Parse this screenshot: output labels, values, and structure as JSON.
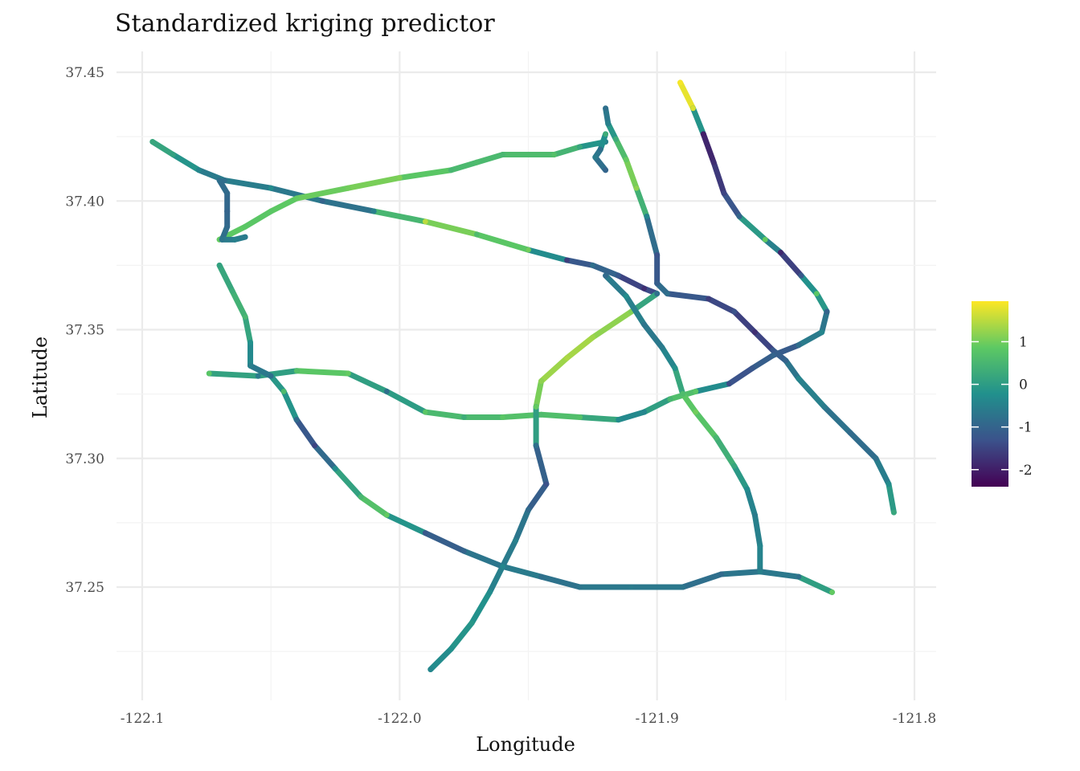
{
  "chart_data": {
    "type": "line",
    "title": "Standardized kriging predictor",
    "xlabel": "Longitude",
    "ylabel": "Latitude",
    "xlim": [
      -122.1,
      -121.8
    ],
    "ylim": [
      37.21,
      37.455
    ],
    "x_ticks": [
      -122.1,
      -122.0,
      -121.9,
      -121.8
    ],
    "x_tick_labels": [
      "-122.1",
      "-122.0",
      "-121.9",
      "-121.8"
    ],
    "y_ticks": [
      37.25,
      37.3,
      37.35,
      37.4,
      37.45
    ],
    "y_tick_labels": [
      "37.25",
      "37.30",
      "37.35",
      "37.40",
      "37.45"
    ],
    "grid": true,
    "legend": {
      "position": "right",
      "type": "colorbar",
      "range": [
        -2.4,
        1.95
      ],
      "breaks": [
        1,
        0,
        -1,
        -2
      ],
      "break_labels": [
        "1",
        "0",
        "-1",
        "-2"
      ],
      "colors": [
        "#440154",
        "#3b528b",
        "#21908d",
        "#5dc963",
        "#fde725"
      ]
    },
    "series": [
      {
        "points": [
          [
            -122.096,
            37.423,
            0.2
          ],
          [
            -122.088,
            37.418,
            0.1
          ],
          [
            -122.078,
            37.412,
            -0.4
          ],
          [
            -122.068,
            37.408,
            -0.8
          ],
          [
            -122.05,
            37.405,
            -0.3
          ],
          [
            -122.03,
            37.4,
            -1.0
          ],
          [
            -122.01,
            37.396,
            -0.5
          ],
          [
            -121.99,
            37.392,
            1.5
          ],
          [
            -121.97,
            37.387,
            0.6
          ],
          [
            -121.95,
            37.381,
            1.0
          ],
          [
            -121.935,
            37.377,
            -1.6
          ],
          [
            -121.925,
            37.375,
            -0.8
          ],
          [
            -121.915,
            37.371,
            -1.2
          ],
          [
            -121.905,
            37.366,
            -1.8
          ],
          [
            -121.9,
            37.364,
            -1.0
          ]
        ]
      },
      {
        "points": [
          [
            -122.07,
            37.385,
            0.9
          ],
          [
            -122.06,
            37.39,
            0.8
          ],
          [
            -122.05,
            37.396,
            0.8
          ],
          [
            -122.04,
            37.401,
            0.9
          ],
          [
            -122.02,
            37.405,
            1.0
          ],
          [
            -122.0,
            37.409,
            1.1
          ],
          [
            -121.98,
            37.412,
            0.5
          ],
          [
            -121.97,
            37.415,
            0.6
          ],
          [
            -121.96,
            37.418,
            0.5
          ],
          [
            -121.94,
            37.418,
            0.7
          ],
          [
            -121.93,
            37.421,
            0.2
          ],
          [
            -121.92,
            37.423,
            -0.5
          ]
        ]
      },
      {
        "points": [
          [
            -122.07,
            37.408,
            -0.8
          ],
          [
            -122.067,
            37.403,
            -0.9
          ],
          [
            -122.067,
            37.396,
            -1.0
          ],
          [
            -122.067,
            37.39,
            -0.9
          ],
          [
            -122.069,
            37.385,
            -0.7
          ],
          [
            -122.064,
            37.385,
            -0.5
          ],
          [
            -122.06,
            37.386,
            -0.6
          ]
        ]
      },
      {
        "points": [
          [
            -121.92,
            37.436,
            -0.8
          ],
          [
            -121.919,
            37.43,
            -0.5
          ],
          [
            -121.916,
            37.424,
            0.3
          ],
          [
            -121.912,
            37.416,
            0.9
          ],
          [
            -121.908,
            37.405,
            1.2
          ],
          [
            -121.904,
            37.394,
            -0.4
          ],
          [
            -121.9,
            37.379,
            -1.3
          ],
          [
            -121.9,
            37.368,
            -1.1
          ],
          [
            -121.896,
            37.364,
            -0.6
          ]
        ]
      },
      {
        "points": [
          [
            -121.92,
            37.426,
            0.3
          ],
          [
            -121.922,
            37.42,
            -0.8
          ],
          [
            -121.924,
            37.417,
            -0.6
          ],
          [
            -121.92,
            37.412,
            -1.0
          ]
        ]
      },
      {
        "points": [
          [
            -121.891,
            37.446,
            1.9
          ],
          [
            -121.886,
            37.436,
            1.7
          ],
          [
            -121.882,
            37.426,
            -2.0
          ],
          [
            -121.878,
            37.415,
            -1.8
          ],
          [
            -121.874,
            37.403,
            -1.5
          ],
          [
            -121.868,
            37.394,
            -1.0
          ],
          [
            -121.858,
            37.385,
            0.9
          ],
          [
            -121.852,
            37.38,
            -1.9
          ],
          [
            -121.844,
            37.371,
            -1.2
          ],
          [
            -121.838,
            37.364,
            0.8
          ],
          [
            -121.834,
            37.357,
            -1.0
          ],
          [
            -121.836,
            37.349,
            -0.4
          ],
          [
            -121.845,
            37.344,
            -0.8
          ],
          [
            -121.855,
            37.34,
            -1.5
          ]
        ]
      },
      {
        "points": [
          [
            -121.896,
            37.364,
            -0.8
          ],
          [
            -121.88,
            37.362,
            -1.6
          ],
          [
            -121.87,
            37.357,
            -1.3
          ],
          [
            -121.862,
            37.349,
            -1.8
          ],
          [
            -121.855,
            37.342,
            -1.2
          ],
          [
            -121.85,
            37.338,
            -1.0
          ],
          [
            -121.845,
            37.331,
            -0.4
          ],
          [
            -121.835,
            37.32,
            -0.6
          ],
          [
            -121.825,
            37.31,
            -0.9
          ],
          [
            -121.815,
            37.3,
            -0.8
          ],
          [
            -121.81,
            37.29,
            -0.3
          ],
          [
            -121.808,
            37.279,
            0.2
          ]
        ]
      },
      {
        "points": [
          [
            -121.855,
            37.34,
            -1.0
          ],
          [
            -121.863,
            37.335,
            -1.2
          ],
          [
            -121.872,
            37.329,
            -1.4
          ],
          [
            -121.885,
            37.326,
            0.8
          ],
          [
            -121.895,
            37.323,
            0.5
          ],
          [
            -121.905,
            37.318,
            -0.4
          ],
          [
            -121.915,
            37.315,
            -0.3
          ],
          [
            -121.93,
            37.316,
            0.7
          ],
          [
            -121.945,
            37.317,
            0.6
          ],
          [
            -121.96,
            37.316,
            0.8
          ],
          [
            -121.975,
            37.316,
            0.3
          ],
          [
            -121.99,
            37.318,
            0.8
          ],
          [
            -122.005,
            37.326,
            -0.8
          ],
          [
            -122.02,
            37.333,
            0.9
          ],
          [
            -122.04,
            37.334,
            0.7
          ],
          [
            -122.055,
            37.332,
            -0.6
          ],
          [
            -122.074,
            37.333,
            0.8
          ]
        ]
      },
      {
        "points": [
          [
            -121.9,
            37.364,
            -0.8
          ],
          [
            -121.91,
            37.357,
            1.1
          ],
          [
            -121.925,
            37.347,
            1.3
          ],
          [
            -121.935,
            37.339,
            1.4
          ],
          [
            -121.945,
            37.33,
            1.2
          ],
          [
            -121.947,
            37.32,
            0.9
          ],
          [
            -121.947,
            37.305,
            -0.8
          ],
          [
            -121.943,
            37.29,
            -1.3
          ],
          [
            -121.95,
            37.28,
            -0.9
          ],
          [
            -121.955,
            37.268,
            -0.5
          ],
          [
            -121.96,
            37.258,
            -0.7
          ],
          [
            -121.965,
            37.248,
            -0.3
          ],
          [
            -121.972,
            37.236,
            -0.1
          ],
          [
            -121.98,
            37.226,
            -0.2
          ],
          [
            -121.988,
            37.218,
            -0.4
          ]
        ]
      },
      {
        "points": [
          [
            -121.92,
            37.371,
            -0.9
          ],
          [
            -121.912,
            37.363,
            -0.3
          ],
          [
            -121.905,
            37.352,
            -0.7
          ],
          [
            -121.898,
            37.343,
            -0.6
          ],
          [
            -121.893,
            37.335,
            -0.2
          ],
          [
            -121.89,
            37.325,
            0.6
          ],
          [
            -121.885,
            37.318,
            1.0
          ],
          [
            -121.877,
            37.308,
            0.5
          ],
          [
            -121.87,
            37.297,
            0.2
          ],
          [
            -121.865,
            37.288,
            -0.3
          ],
          [
            -121.862,
            37.278,
            -0.6
          ],
          [
            -121.86,
            37.266,
            -0.4
          ],
          [
            -121.86,
            37.257,
            -0.5
          ]
        ]
      },
      {
        "points": [
          [
            -122.07,
            37.375,
            0.1
          ],
          [
            -122.065,
            37.365,
            0.3
          ],
          [
            -122.06,
            37.355,
            0.5
          ],
          [
            -122.058,
            37.345,
            -0.2
          ],
          [
            -122.058,
            37.336,
            -0.5
          ],
          [
            -122.05,
            37.332,
            -0.8
          ],
          [
            -122.045,
            37.326,
            0.6
          ],
          [
            -122.04,
            37.315,
            -0.9
          ],
          [
            -122.033,
            37.305,
            -1.5
          ],
          [
            -122.025,
            37.296,
            -0.3
          ],
          [
            -122.015,
            37.285,
            0.5
          ],
          [
            -122.005,
            37.278,
            0.9
          ],
          [
            -121.99,
            37.271,
            -1.2
          ],
          [
            -121.975,
            37.264,
            -1.0
          ],
          [
            -121.96,
            37.258,
            -0.4
          ],
          [
            -121.945,
            37.254,
            -0.8
          ],
          [
            -121.93,
            37.25,
            -0.7
          ],
          [
            -121.91,
            37.25,
            -0.6
          ],
          [
            -121.89,
            37.25,
            -0.7
          ],
          [
            -121.875,
            37.255,
            -0.9
          ],
          [
            -121.86,
            37.256,
            -0.5
          ],
          [
            -121.845,
            37.254,
            -0.8
          ],
          [
            -121.832,
            37.248,
            0.9
          ]
        ]
      }
    ]
  }
}
